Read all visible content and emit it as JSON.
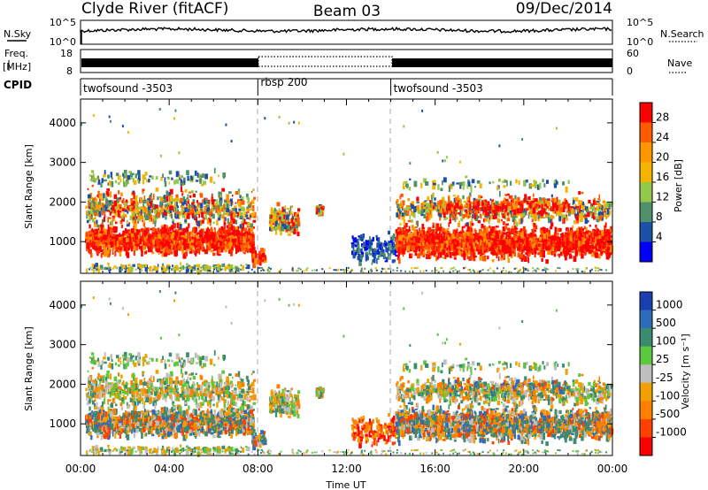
{
  "header": {
    "station": "Clyde River (fitACF)",
    "beam": "Beam 03",
    "date": "09/Dec/2014"
  },
  "chart_data": [
    {
      "type": "line",
      "panel": "noise",
      "left_label": "N.Sky",
      "right_label": "N.Search",
      "left_ticks": [
        "10^5",
        "10^0"
      ],
      "right_ticks": [
        "10^5",
        "10^0"
      ]
    },
    {
      "type": "line",
      "panel": "frequency-nave",
      "left_label_line1": "Freq.",
      "left_label_line2": "[MHz]",
      "right_label": "Nave",
      "left_ticks": [
        "18",
        "8"
      ],
      "right_ticks": [
        "60",
        "0"
      ]
    },
    {
      "type": "table",
      "panel": "cpid",
      "label": "CPID",
      "segments": [
        {
          "start_h": 0,
          "end_h": 8,
          "label": "twofsound -3503"
        },
        {
          "start_h": 8,
          "end_h": 14,
          "label": "rbsp 200"
        },
        {
          "start_h": 14,
          "end_h": 24,
          "label": "twofsound -3503"
        }
      ]
    },
    {
      "type": "heatmap",
      "panel": "power",
      "ylabel": "Slant Range [km]",
      "ylim": [
        200,
        4600
      ],
      "yticks": [
        1000,
        2000,
        3000,
        4000
      ],
      "xlim": [
        0,
        24
      ],
      "colorbar": {
        "label": "Power [dB]",
        "ticks": [
          "28",
          "24",
          "20",
          "16",
          "12",
          "8",
          "4"
        ],
        "colors": [
          "#ff0000",
          "#ff5a00",
          "#ff9600",
          "#f5b400",
          "#93c84a",
          "#4f8f6a",
          "#1c4fa8",
          "#0000ff"
        ]
      }
    },
    {
      "type": "heatmap",
      "panel": "velocity",
      "ylabel": "Slant Range [km]",
      "ylim": [
        200,
        4600
      ],
      "yticks": [
        1000,
        2000,
        3000,
        4000
      ],
      "xlim": [
        0,
        24
      ],
      "xlabel": "Time UT",
      "xticks": [
        "00:00",
        "04:00",
        "08:00",
        "12:00",
        "16:00",
        "20:00",
        "00:00"
      ],
      "colorbar": {
        "label": "Velocity [m s⁻¹]",
        "ticks": [
          "1000",
          "500",
          "100",
          "25",
          "-25",
          "-100",
          "-500",
          "-1000"
        ],
        "colors": [
          "#1a3fb0",
          "#2e6bb8",
          "#3b8c6e",
          "#5cc840",
          "#bebebe",
          "#f0a000",
          "#ff8000",
          "#ff4000",
          "#ff0000"
        ]
      }
    }
  ],
  "colors": {
    "power_high": "#ff0000",
    "power_low": "#0000ff",
    "velocity_positive": "#1a3fb0",
    "velocity_negative": "#ff0000",
    "ground_scatter": "#bebebe"
  }
}
